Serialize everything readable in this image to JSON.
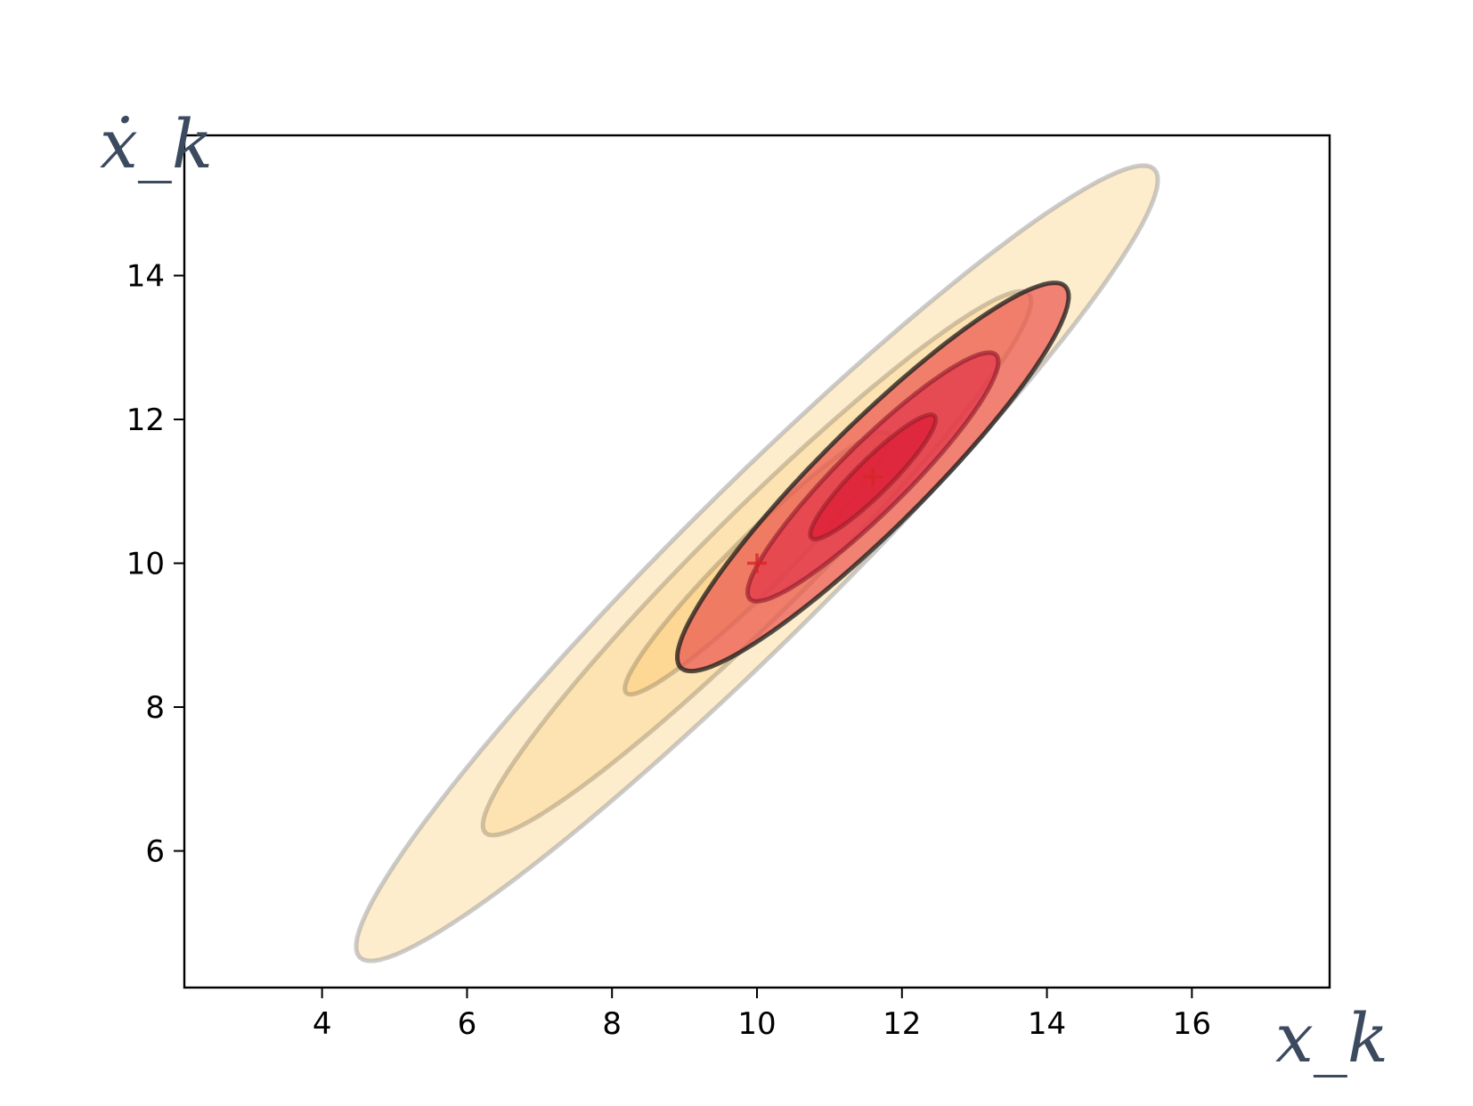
{
  "chart_data": {
    "type": "scatter",
    "title": "",
    "xlabel": "x_k",
    "ylabel": "ẋ_k",
    "xlim": [
      2.1,
      17.9
    ],
    "ylim": [
      4.1,
      15.95
    ],
    "xticks": [
      4,
      6,
      8,
      10,
      12,
      14,
      16
    ],
    "yticks": [
      6,
      8,
      10,
      12,
      14
    ],
    "grid": false,
    "legend": "none",
    "centers": [
      {
        "x": 10.0,
        "y": 10.0,
        "marker": "+",
        "color": "#d62728"
      },
      {
        "x": 11.6,
        "y": 11.2,
        "marker": "+",
        "color": "#d62728"
      }
    ],
    "ellipses": [
      {
        "cx": 10.0,
        "cy": 10.0,
        "rx": 7.75,
        "ry": 1.05,
        "angle_deg": 45,
        "fill": "#fde6b8",
        "alpha": 0.72,
        "stroke": "#a0a0a0",
        "stroke_alpha": 0.55
      },
      {
        "cx": 10.0,
        "cy": 10.0,
        "rx": 5.3,
        "ry": 0.72,
        "angle_deg": 45,
        "fill": "#fcd690",
        "alpha": 0.45,
        "stroke": "#9a8a70",
        "stroke_alpha": 0.45
      },
      {
        "cx": 10.0,
        "cy": 10.0,
        "rx": 2.55,
        "ry": 0.38,
        "angle_deg": 45,
        "fill": "#fcc870",
        "alpha": 0.45,
        "stroke": "#8a7a60",
        "stroke_alpha": 0.4
      },
      {
        "cx": 11.6,
        "cy": 11.2,
        "rx": 3.75,
        "ry": 0.72,
        "angle_deg": 45,
        "fill": "#ea5850",
        "alpha": 0.72,
        "stroke": "#1a1a1a",
        "stroke_alpha": 0.75
      },
      {
        "cx": 11.6,
        "cy": 11.2,
        "rx": 2.4,
        "ry": 0.47,
        "angle_deg": 45,
        "fill": "#e2364a",
        "alpha": 0.72,
        "stroke": "#8a1828",
        "stroke_alpha": 0.6
      },
      {
        "cx": 11.6,
        "cy": 11.2,
        "rx": 1.2,
        "ry": 0.24,
        "angle_deg": 45,
        "fill": "#dc1c34",
        "alpha": 0.72,
        "stroke": "#901a26",
        "stroke_alpha": 0.55
      }
    ]
  }
}
